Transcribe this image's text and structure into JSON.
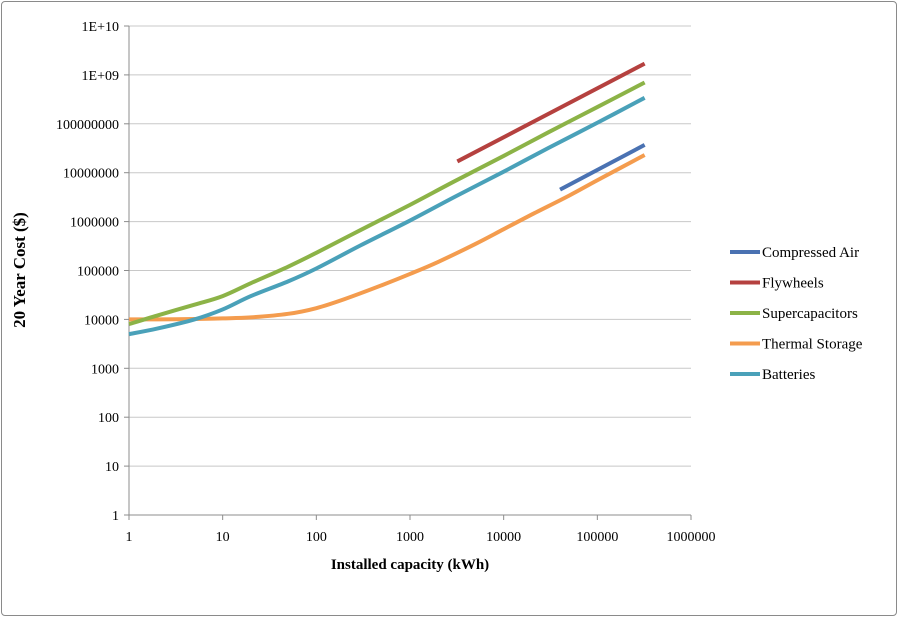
{
  "chart_data": {
    "type": "line",
    "title": "",
    "xlabel": "Installed capacity (kWh)",
    "ylabel": "20 Year Cost ($)",
    "xscale": "log",
    "yscale": "log",
    "xlim": [
      1,
      1000000
    ],
    "ylim": [
      1,
      10000000000
    ],
    "grid": "horizontal",
    "legend_position": "right",
    "x_tick_labels": [
      "1",
      "10",
      "100",
      "1000",
      "10000",
      "100000",
      "1000000"
    ],
    "y_tick_labels": [
      "1",
      "10",
      "100",
      "1000",
      "10000",
      "100000",
      "1000000",
      "10000000",
      "100000000",
      "1E+09",
      "1E+10"
    ],
    "series": [
      {
        "name": "Compressed Air",
        "color": "#4a72b2",
        "x": [
          40000,
          320000
        ],
        "y": [
          4500000,
          37000000
        ]
      },
      {
        "name": "Flywheels",
        "color": "#b5413f",
        "x": [
          3200,
          320000
        ],
        "y": [
          17000000,
          1700000000
        ]
      },
      {
        "name": "Supercapacitors",
        "color": "#8cb347",
        "x": [
          1,
          2,
          5,
          10,
          20,
          50,
          100,
          300,
          1000,
          3000,
          10000,
          30000,
          100000,
          320000
        ],
        "y": [
          8000,
          12000,
          20000,
          30000,
          55000,
          120000,
          230000,
          680000,
          2200000,
          6700000,
          22000000,
          67000000,
          220000000,
          700000000
        ]
      },
      {
        "name": "Thermal Storage",
        "color": "#f49c4e",
        "x": [
          1,
          2,
          5,
          10,
          20,
          50,
          100,
          200,
          500,
          1000,
          2000,
          5000,
          10000,
          20000,
          50000,
          100000,
          320000
        ],
        "y": [
          10000,
          10000,
          10200,
          10500,
          11000,
          13000,
          17000,
          26000,
          50000,
          85000,
          150000,
          350000,
          700000,
          1400000,
          3400000,
          7000000,
          23000000
        ]
      },
      {
        "name": "Batteries",
        "color": "#4aa1b9",
        "x": [
          1,
          2,
          5,
          10,
          20,
          50,
          100,
          300,
          1000,
          3000,
          10000,
          30000,
          100000,
          320000
        ],
        "y": [
          5000,
          6500,
          10000,
          16000,
          30000,
          60000,
          110000,
          330000,
          1050000,
          3200000,
          10500000,
          32000000,
          105000000,
          340000000
        ]
      }
    ]
  }
}
